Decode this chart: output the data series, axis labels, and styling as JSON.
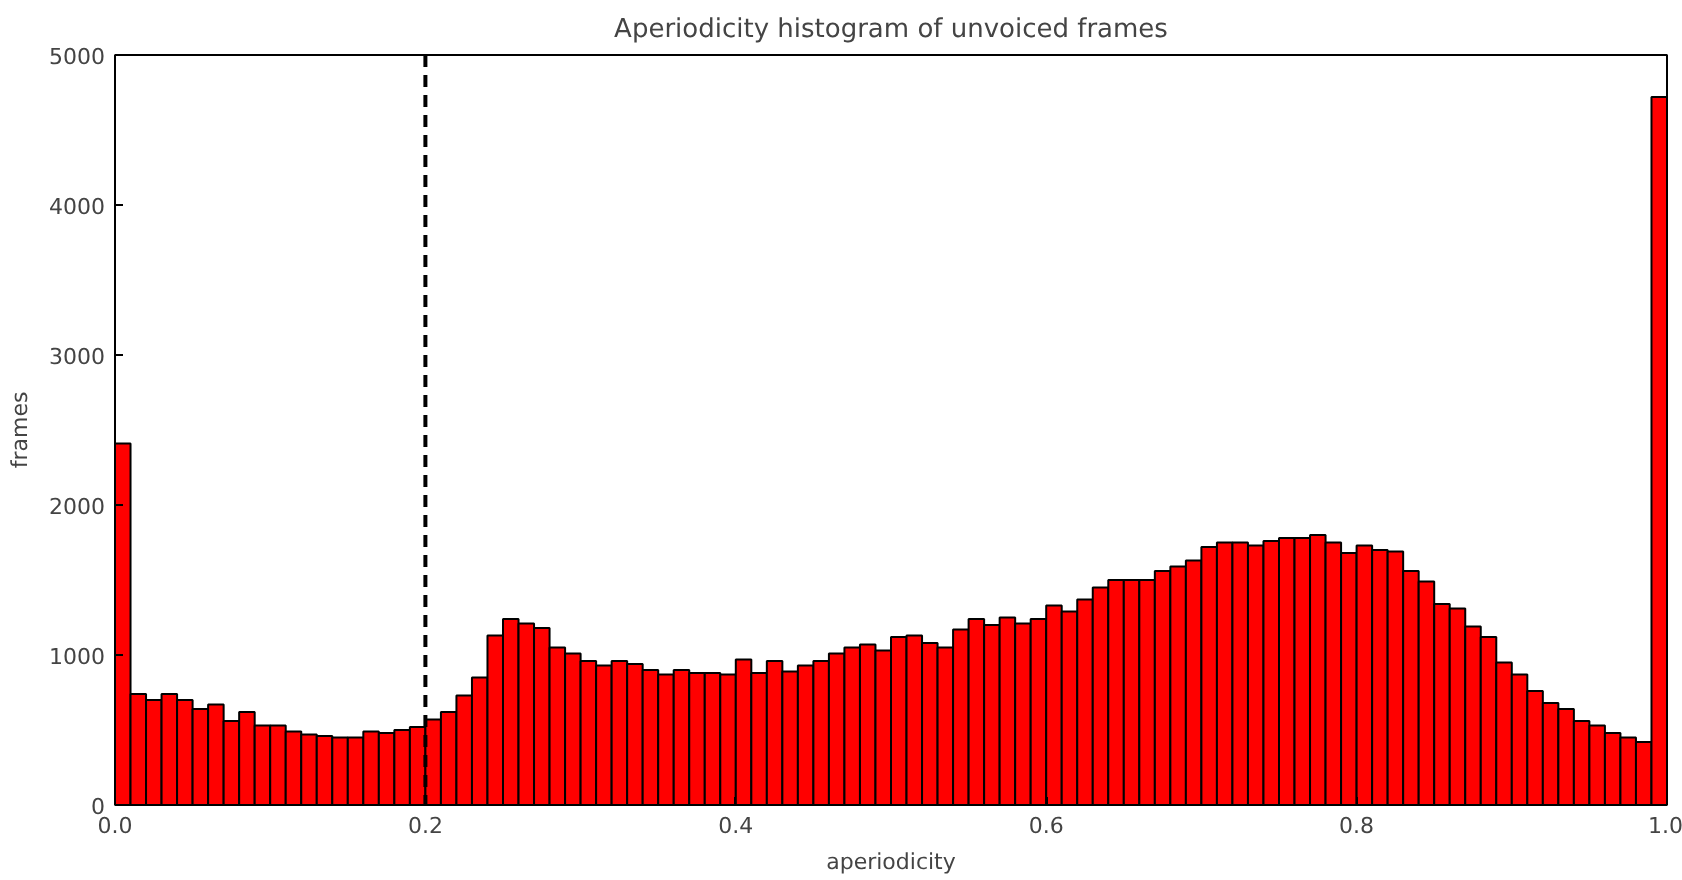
{
  "chart_data": {
    "type": "histogram",
    "title": "Aperiodicity histogram of unvoiced frames",
    "xlabel": "aperiodicity",
    "ylabel": "frames",
    "color": "#ff0000",
    "bins": [
      0.0,
      0.01,
      0.02,
      0.03,
      0.04,
      0.05,
      0.06,
      0.07,
      0.08,
      0.09,
      0.1,
      0.11,
      0.12,
      0.13,
      0.14,
      0.15,
      0.16,
      0.17,
      0.18,
      0.19,
      0.2,
      0.21,
      0.22,
      0.23,
      0.24,
      0.25,
      0.26,
      0.27,
      0.28,
      0.29,
      0.3,
      0.31,
      0.32,
      0.33,
      0.34,
      0.35,
      0.36,
      0.37,
      0.38,
      0.39,
      0.4,
      0.41,
      0.42,
      0.43,
      0.44,
      0.45,
      0.46,
      0.47,
      0.48,
      0.49,
      0.5,
      0.51,
      0.52,
      0.53,
      0.54,
      0.55,
      0.56,
      0.57,
      0.58,
      0.59,
      0.6,
      0.61,
      0.62,
      0.63,
      0.64,
      0.65,
      0.66,
      0.67,
      0.68,
      0.69,
      0.7,
      0.71,
      0.72,
      0.73,
      0.74,
      0.75,
      0.76,
      0.77,
      0.78,
      0.79,
      0.8,
      0.81,
      0.82,
      0.83,
      0.84,
      0.85,
      0.86,
      0.87,
      0.88,
      0.89,
      0.9,
      0.91,
      0.92,
      0.93,
      0.94,
      0.95,
      0.96,
      0.97,
      0.98,
      0.99,
      1.0
    ],
    "values": [
      2410,
      740,
      700,
      740,
      700,
      640,
      670,
      560,
      620,
      530,
      530,
      490,
      470,
      460,
      450,
      450,
      490,
      480,
      500,
      520,
      570,
      620,
      730,
      850,
      1130,
      1240,
      1210,
      1180,
      1050,
      1010,
      960,
      930,
      960,
      940,
      900,
      870,
      900,
      880,
      880,
      870,
      970,
      880,
      960,
      890,
      930,
      960,
      1010,
      1050,
      1070,
      1030,
      1120,
      1130,
      1080,
      1050,
      1170,
      1240,
      1200,
      1250,
      1210,
      1240,
      1330,
      1290,
      1370,
      1450,
      1500,
      1500,
      1500,
      1560,
      1590,
      1630,
      1720,
      1750,
      1750,
      1730,
      1760,
      1780,
      1780,
      1800,
      1750,
      1680,
      1730,
      1700,
      1690,
      1560,
      1490,
      1340,
      1310,
      1190,
      1120,
      950,
      870,
      760,
      680,
      640,
      560,
      530,
      480,
      450,
      420,
      4720
    ],
    "xlim": [
      0.0,
      1.0
    ],
    "ylim": [
      0,
      5000
    ],
    "xticks": [
      {
        "value": 0,
        "label": "0.0"
      },
      0.2,
      0.4,
      0.6,
      0.8,
      {
        "value": 1,
        "label": "1.0"
      }
    ],
    "yticks": [
      0,
      1000,
      2000,
      3000,
      4000,
      5000
    ],
    "ref_lines": [
      {
        "axis": "x",
        "value": 0.2,
        "color": "#000000",
        "line_style": "dashed"
      }
    ],
    "grid": false
  }
}
